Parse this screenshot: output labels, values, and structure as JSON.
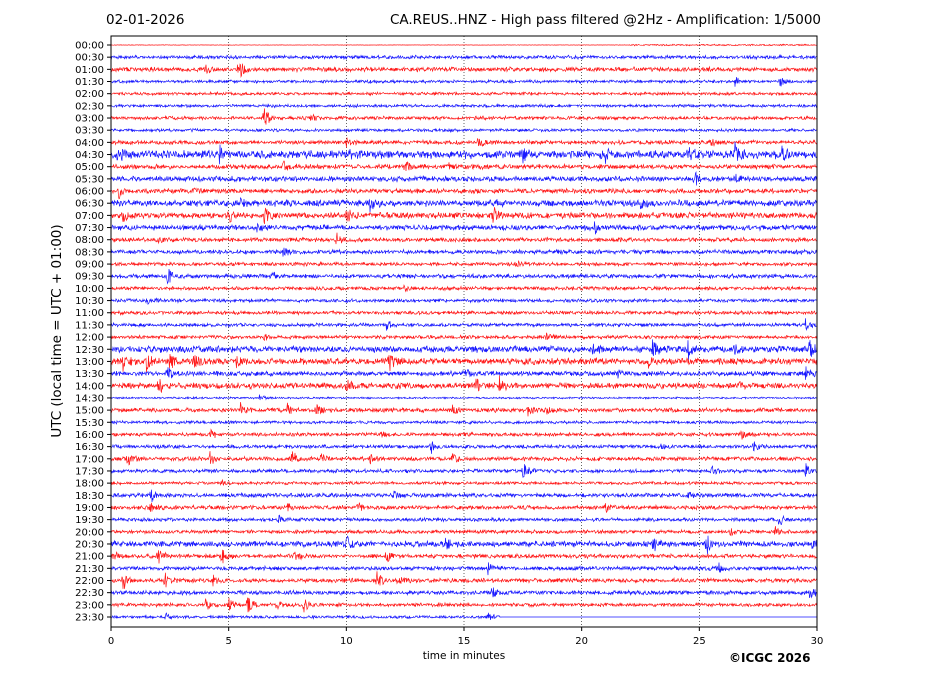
{
  "header": {
    "date": "02-01-2026",
    "title": "CA.REUS..HNZ - High pass filtered @2Hz - Amplification: 1/5000"
  },
  "footer": {
    "credit": "©ICGC 2026"
  },
  "chart_data": {
    "type": "line",
    "subtype": "helicorder",
    "title": "CA.REUS..HNZ - High pass filtered @2Hz - Amplification: 1/5000",
    "xlabel": "time in minutes",
    "ylabel": "UTC (local time = UTC + 01:00)",
    "xlim": [
      0,
      30
    ],
    "x_ticks": [
      "0",
      "5",
      "10",
      "15",
      "20",
      "25",
      "30"
    ],
    "grid": "vertical dotted every 5 minutes",
    "colors": [
      "#ff0000",
      "#0000ff"
    ],
    "rows": [
      "00:00",
      "00:30",
      "01:00",
      "01:30",
      "02:00",
      "02:30",
      "03:00",
      "03:30",
      "04:00",
      "04:30",
      "05:00",
      "05:30",
      "06:00",
      "06:30",
      "07:00",
      "07:30",
      "08:00",
      "08:30",
      "09:00",
      "09:30",
      "10:00",
      "10:30",
      "11:00",
      "11:30",
      "12:00",
      "12:30",
      "13:00",
      "13:30",
      "14:00",
      "14:30",
      "15:00",
      "15:30",
      "16:00",
      "16:30",
      "17:00",
      "17:30",
      "18:00",
      "18:30",
      "19:00",
      "19:30",
      "20:00",
      "20:30",
      "21:00",
      "21:30",
      "22:00",
      "22:30",
      "23:00",
      "23:30"
    ],
    "noise_levels": [
      0.05,
      0.12,
      0.15,
      0.1,
      0.1,
      0.1,
      0.12,
      0.1,
      0.14,
      0.28,
      0.16,
      0.18,
      0.16,
      0.22,
      0.2,
      0.18,
      0.14,
      0.14,
      0.12,
      0.14,
      0.12,
      0.12,
      0.12,
      0.12,
      0.12,
      0.22,
      0.22,
      0.16,
      0.2,
      0.06,
      0.14,
      0.1,
      0.12,
      0.12,
      0.14,
      0.12,
      0.1,
      0.14,
      0.14,
      0.12,
      0.12,
      0.2,
      0.14,
      0.14,
      0.14,
      0.14,
      0.12,
      0.1
    ],
    "last_row_end_minute": 16.5,
    "first_row_quiet_until_minute": 22,
    "events": [
      [
        2,
        5.4,
        1.2
      ],
      [
        2,
        4.0,
        0.4
      ],
      [
        3,
        26.5,
        0.4
      ],
      [
        3,
        28.4,
        0.5
      ],
      [
        6,
        6.5,
        0.9
      ],
      [
        6,
        8.5,
        0.3
      ],
      [
        8,
        15.6,
        0.7
      ],
      [
        8,
        25.5,
        0.4
      ],
      [
        8,
        10,
        0.3
      ],
      [
        9,
        0.3,
        0.6
      ],
      [
        9,
        4.6,
        0.7
      ],
      [
        9,
        10,
        0.5
      ],
      [
        9,
        17.5,
        0.6
      ],
      [
        9,
        21,
        0.6
      ],
      [
        9,
        24.5,
        0.8
      ],
      [
        9,
        26.5,
        1.0
      ],
      [
        9,
        28.5,
        0.5
      ],
      [
        10,
        7.3,
        0.6
      ],
      [
        10,
        12.5,
        0.5
      ],
      [
        10,
        14.3,
        0.5
      ],
      [
        11,
        24.8,
        0.5
      ],
      [
        11,
        26.5,
        0.4
      ],
      [
        12,
        0.3,
        0.7
      ],
      [
        12,
        3.5,
        0.3
      ],
      [
        13,
        11,
        0.5
      ],
      [
        13,
        22.5,
        0.6
      ],
      [
        13,
        5.5,
        0.4
      ],
      [
        14,
        0.5,
        0.6
      ],
      [
        14,
        5,
        0.6
      ],
      [
        14,
        6.5,
        0.6
      ],
      [
        14,
        10,
        0.6
      ],
      [
        14,
        16.2,
        0.8
      ],
      [
        15,
        20.5,
        0.6
      ],
      [
        15,
        6.2,
        0.3
      ],
      [
        16,
        9.6,
        0.5
      ],
      [
        16,
        2,
        0.3
      ],
      [
        17,
        7.3,
        0.4
      ],
      [
        18,
        17.2,
        0.3
      ],
      [
        19,
        2.4,
        1.0
      ],
      [
        19,
        6.8,
        0.4
      ],
      [
        20,
        12.5,
        0.3
      ],
      [
        21,
        1.5,
        0.3
      ],
      [
        23,
        11.7,
        0.4
      ],
      [
        23,
        29.5,
        0.5
      ],
      [
        24,
        18.5,
        0.4
      ],
      [
        24,
        6.5,
        0.4
      ],
      [
        25,
        23,
        0.8
      ],
      [
        25,
        24.5,
        0.8
      ],
      [
        25,
        26.5,
        0.7
      ],
      [
        25,
        29.7,
        0.8
      ],
      [
        25,
        20.5,
        0.5
      ],
      [
        26,
        0.5,
        0.7
      ],
      [
        26,
        1.5,
        0.7
      ],
      [
        26,
        2.5,
        0.9
      ],
      [
        26,
        3.5,
        0.7
      ],
      [
        26,
        5.3,
        0.5
      ],
      [
        26,
        11.8,
        0.8
      ],
      [
        26,
        22.8,
        0.4
      ],
      [
        27,
        2.4,
        0.5
      ],
      [
        27,
        15,
        0.5
      ],
      [
        27,
        21.5,
        0.4
      ],
      [
        27,
        29.5,
        0.5
      ],
      [
        28,
        2,
        0.7
      ],
      [
        28,
        10,
        0.6
      ],
      [
        28,
        16.5,
        0.7
      ],
      [
        28,
        15.5,
        0.5
      ],
      [
        28,
        26.7,
        0.3
      ],
      [
        29,
        6.3,
        0.3
      ],
      [
        30,
        5.5,
        0.6
      ],
      [
        30,
        7.5,
        0.6
      ],
      [
        30,
        8.7,
        0.6
      ],
      [
        30,
        14.5,
        0.4
      ],
      [
        30,
        17.7,
        0.5
      ],
      [
        30,
        18.5,
        0.5
      ],
      [
        32,
        4.2,
        0.5
      ],
      [
        32,
        11.5,
        0.3
      ],
      [
        32,
        26.8,
        0.4
      ],
      [
        33,
        13.6,
        0.5
      ],
      [
        33,
        27.3,
        0.5
      ],
      [
        33,
        23.3,
        0.4
      ],
      [
        34,
        0.7,
        0.6
      ],
      [
        34,
        4.2,
        0.6
      ],
      [
        34,
        7.7,
        0.7
      ],
      [
        34,
        8.9,
        0.5
      ],
      [
        34,
        11,
        0.6
      ],
      [
        34,
        14.5,
        0.7
      ],
      [
        35,
        17.5,
        0.8
      ],
      [
        35,
        25.5,
        0.5
      ],
      [
        35,
        29.5,
        0.6
      ],
      [
        36,
        4.7,
        0.3
      ],
      [
        37,
        1.7,
        0.6
      ],
      [
        37,
        12,
        0.4
      ],
      [
        37,
        24.5,
        0.4
      ],
      [
        38,
        1.6,
        0.6
      ],
      [
        38,
        10.5,
        0.6
      ],
      [
        38,
        7.5,
        0.4
      ],
      [
        38,
        21,
        0.4
      ],
      [
        39,
        28.4,
        0.6
      ],
      [
        39,
        7.1,
        0.4
      ],
      [
        40,
        26.3,
        0.4
      ],
      [
        40,
        28.2,
        0.4
      ],
      [
        41,
        10,
        0.6
      ],
      [
        41,
        14.2,
        0.5
      ],
      [
        41,
        23,
        0.7
      ],
      [
        41,
        25.3,
        0.8
      ],
      [
        41,
        29.8,
        0.5
      ],
      [
        42,
        0.1,
        0.5
      ],
      [
        42,
        2,
        0.6
      ],
      [
        42,
        4.7,
        0.6
      ],
      [
        42,
        7.8,
        0.6
      ],
      [
        42,
        11.7,
        0.5
      ],
      [
        43,
        16,
        0.5
      ],
      [
        43,
        25.8,
        0.5
      ],
      [
        44,
        0.5,
        0.8
      ],
      [
        44,
        2.3,
        0.6
      ],
      [
        44,
        4.3,
        0.5
      ],
      [
        44,
        11.3,
        0.7
      ],
      [
        44,
        12.2,
        0.4
      ],
      [
        45,
        29.7,
        0.8
      ],
      [
        45,
        16.2,
        0.5
      ],
      [
        46,
        4,
        0.5
      ],
      [
        46,
        5,
        0.7
      ],
      [
        46,
        5.8,
        0.9
      ],
      [
        46,
        8.2,
        0.5
      ],
      [
        46,
        7,
        0.4
      ],
      [
        47,
        2.3,
        0.3
      ],
      [
        47,
        16,
        0.4
      ]
    ]
  }
}
